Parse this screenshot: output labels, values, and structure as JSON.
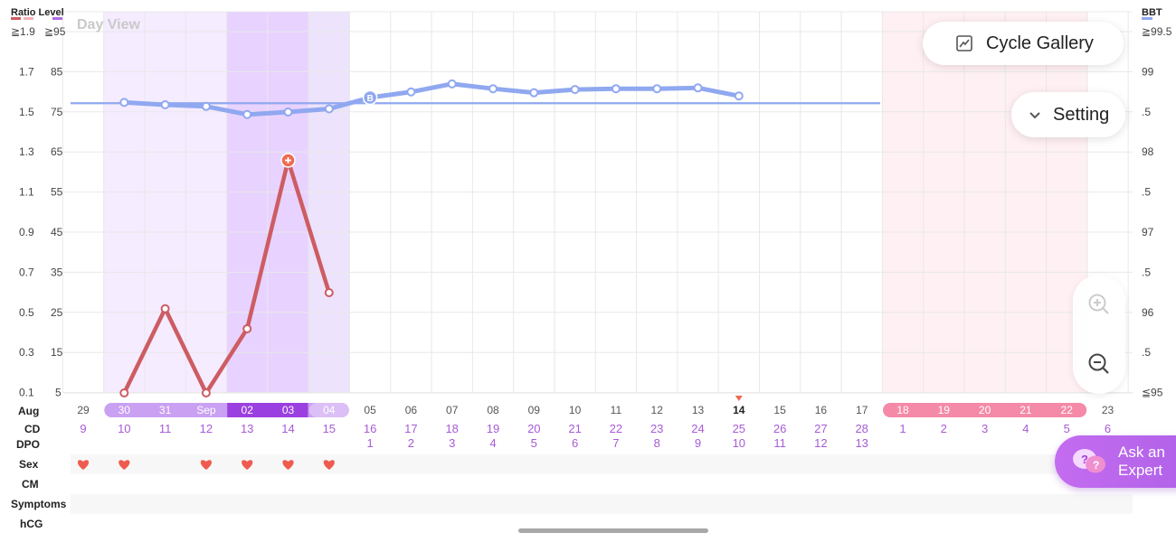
{
  "view_label": "Day View",
  "legend": {
    "left": "Ratio Level",
    "right": "BBT"
  },
  "buttons": {
    "cycle_gallery": "Cycle Gallery",
    "setting": "Setting",
    "ask_expert_line1": "Ask an",
    "ask_expert_line2": "Expert"
  },
  "row_labels": {
    "month": "Aug",
    "cd": "CD",
    "dpo": "DPO",
    "sex": "Sex",
    "cm": "CM",
    "symptoms": "Symptoms",
    "hcg": "hCG"
  },
  "colors": {
    "ratio": "#cd5c63",
    "bbt": "#90a8f0",
    "purple": "#b06be6",
    "pink": "#f58aa8",
    "grid": "#e8e8e8"
  },
  "chart_data": {
    "type": "line",
    "y_left_ratio": {
      "ticks": [
        "≧1.9",
        "1.7",
        "1.5",
        "1.3",
        "1.1",
        "0.9",
        "0.7",
        "0.5",
        "0.3",
        "0.1"
      ]
    },
    "y_left_level": {
      "ticks": [
        "≧95",
        "85",
        "75",
        "65",
        "55",
        "45",
        "35",
        "25",
        "15",
        "5"
      ]
    },
    "y_right_bbt": {
      "ticks": [
        "≧99.5",
        "99",
        ".5",
        "98",
        ".5",
        "97",
        ".5",
        "96",
        ".5",
        "≦95"
      ]
    },
    "days": [
      "29",
      "30",
      "31",
      "Sep",
      "02",
      "03",
      "04",
      "05",
      "06",
      "07",
      "08",
      "09",
      "10",
      "11",
      "12",
      "13",
      "14",
      "15",
      "16",
      "17",
      "18",
      "19",
      "20",
      "21",
      "22",
      "23"
    ],
    "cd": [
      "9",
      "10",
      "11",
      "12",
      "13",
      "14",
      "15",
      "16",
      "17",
      "18",
      "19",
      "20",
      "21",
      "22",
      "23",
      "24",
      "25",
      "26",
      "27",
      "28",
      "1",
      "2",
      "3",
      "4",
      "5",
      "6"
    ],
    "dpo": [
      "",
      "",
      "",
      "",
      "",
      "",
      "",
      "1",
      "2",
      "3",
      "4",
      "5",
      "6",
      "7",
      "8",
      "9",
      "10",
      "11",
      "12",
      "13",
      "",
      "",
      "",
      "",
      "",
      ""
    ],
    "today_index": 16,
    "period_days": [
      20,
      21,
      22,
      23,
      24
    ],
    "fertile_days": [
      1,
      2,
      3,
      4,
      5,
      6
    ],
    "peak_days": [
      4,
      5
    ],
    "series": [
      {
        "name": "BBT",
        "values": [
          null,
          98.61,
          98.58,
          98.56,
          98.46,
          98.49,
          98.53,
          98.67,
          98.74,
          98.84,
          98.78,
          98.73,
          98.77,
          98.78,
          98.78,
          98.79,
          98.69,
          null,
          null,
          null,
          null,
          null,
          null,
          null,
          null,
          null
        ]
      },
      {
        "name": "Ratio Level",
        "values": [
          null,
          5,
          26,
          5,
          21,
          63,
          30,
          null,
          null,
          null,
          null,
          null,
          null,
          null,
          null,
          null,
          null,
          null,
          null,
          null,
          null,
          null,
          null,
          null,
          null,
          null
        ]
      }
    ],
    "coverline": 98.6,
    "ovulation_day_index": 7,
    "ovulation_marker": "B",
    "sex_days": [
      0,
      1,
      3,
      4,
      5,
      6
    ]
  }
}
